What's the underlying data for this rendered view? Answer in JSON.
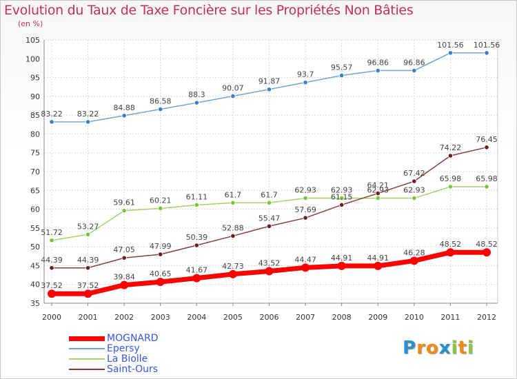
{
  "title": "Evolution du Taux de Taxe Foncière sur les Propriétés Non Bâties",
  "subtitle": "(en %)",
  "logo": {
    "text": "Proxiti",
    "letters": [
      "P",
      "r",
      "o",
      "x",
      "i",
      "t",
      "i"
    ],
    "colors": [
      "#2b8fd0",
      "#f08a1a",
      "#f08a1a",
      "#2b8fd0",
      "#8cc63f",
      "#f08a1a",
      "#8cc63f"
    ]
  },
  "chart_data": {
    "type": "line",
    "categories": [
      "2000",
      "2001",
      "2002",
      "2003",
      "2004",
      "2005",
      "2006",
      "2007",
      "2008",
      "2009",
      "2010",
      "2011",
      "2012"
    ],
    "ylim": [
      35,
      105
    ],
    "yticks": [
      35,
      40,
      45,
      50,
      55,
      60,
      65,
      70,
      75,
      80,
      85,
      90,
      95,
      100,
      105
    ],
    "grid": true,
    "legend_placement": "bottom-left",
    "series": [
      {
        "name": "Epersy",
        "color": "#6fa5d2",
        "marker": "#3d7fc0",
        "width": 1.5,
        "values": [
          83.22,
          83.22,
          84.88,
          86.58,
          88.3,
          90.07,
          91.87,
          93.7,
          95.57,
          96.86,
          96.86,
          101.56,
          101.56
        ],
        "labels": [
          "83.22",
          "83.22",
          "84.88",
          "86.58",
          "88.3",
          "90.07",
          "91.87",
          "93.7",
          "95.57",
          "96.86",
          "96.86",
          "101.56",
          "101.56"
        ]
      },
      {
        "name": "La Biolle",
        "color": "#9ed46a",
        "marker": "#7cc23c",
        "width": 1.5,
        "values": [
          51.72,
          53.27,
          59.61,
          60.21,
          61.11,
          61.7,
          61.7,
          62.93,
          62.93,
          62.93,
          62.93,
          65.98,
          65.98
        ],
        "labels": [
          "51.72",
          "53.27",
          "59.61",
          "60.21",
          "61.11",
          "61.7",
          "61.7",
          "62.93",
          "62.93",
          "62.93",
          "62.93",
          "65.98",
          "65.98"
        ]
      },
      {
        "name": "Saint-Ours",
        "color": "#8a3b3b",
        "marker": "#6b1e1e",
        "width": 1.5,
        "values": [
          44.39,
          44.39,
          47.05,
          47.99,
          50.39,
          52.88,
          55.47,
          57.69,
          61.15,
          64.21,
          67.42,
          74.22,
          76.45
        ],
        "labels": [
          "44.39",
          "44.39",
          "47.05",
          "47.99",
          "50.39",
          "52.88",
          "55.47",
          "57.69",
          "61.15",
          "64.21",
          "67.42",
          "74.22",
          "76.45"
        ]
      },
      {
        "name": "MOGNARD",
        "color": "#ff0000",
        "marker": "#ff0000",
        "width": 7,
        "values": [
          37.52,
          37.52,
          39.84,
          40.65,
          41.67,
          42.73,
          43.52,
          44.47,
          44.91,
          44.91,
          46.28,
          48.52,
          48.52
        ],
        "labels": [
          "37.52",
          "37.52",
          "39.84",
          "40.65",
          "41.67",
          "42.73",
          "43.52",
          "44.47",
          "44.91",
          "44.91",
          "46.28",
          "48.52",
          "48.52"
        ]
      }
    ],
    "legend": [
      {
        "name": "MOGNARD",
        "color": "#ff0000",
        "text_color": "#3a55e6",
        "width": 7
      },
      {
        "name": "Epersy",
        "color": "#6fa5d2",
        "text_color": "#3a55e6",
        "width": 2
      },
      {
        "name": "La Biolle",
        "color": "#9ed46a",
        "text_color": "#3a55e6",
        "width": 2
      },
      {
        "name": "Saint-Ours",
        "color": "#8a3b3b",
        "text_color": "#3a55e6",
        "width": 2
      }
    ]
  }
}
